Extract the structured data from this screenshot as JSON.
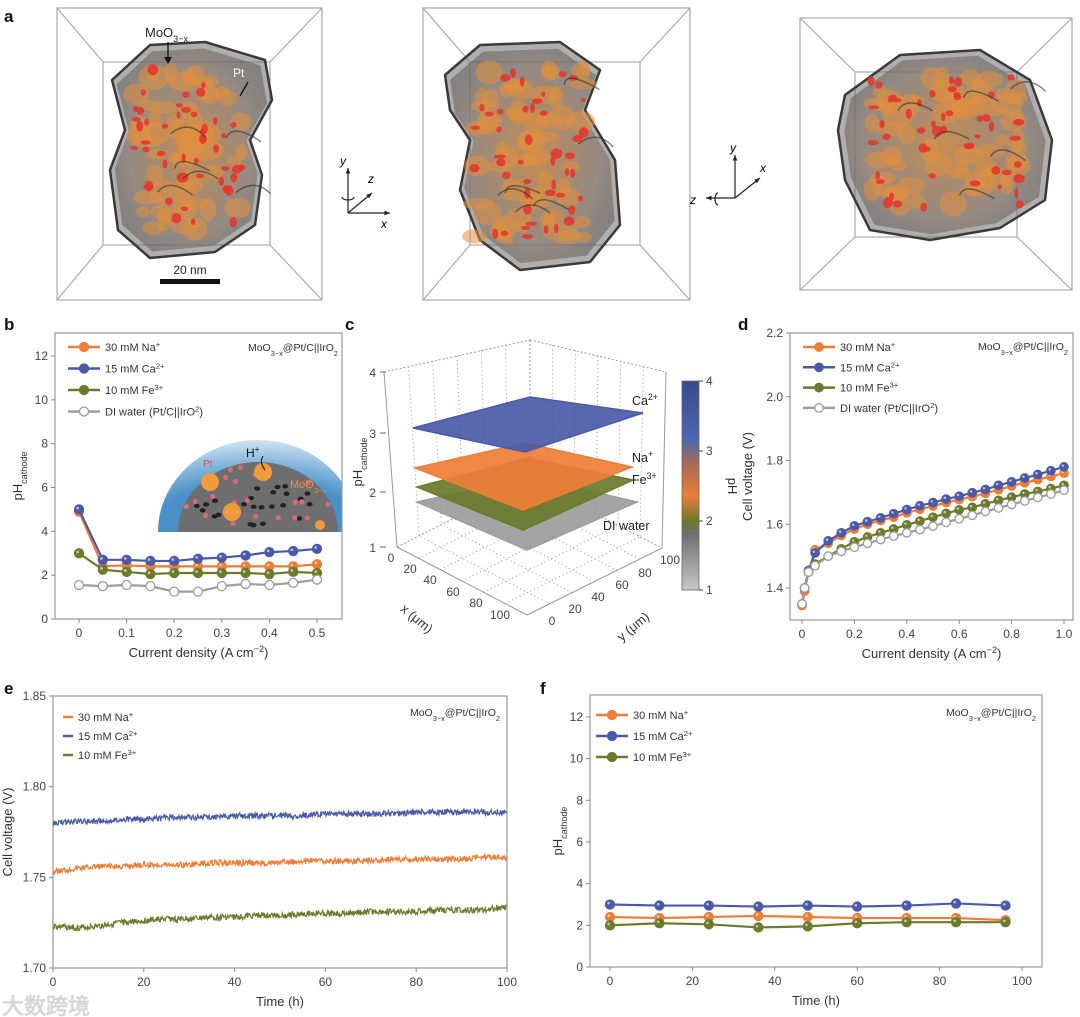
{
  "panel_labels": [
    "a",
    "b",
    "c",
    "d",
    "e",
    "f"
  ],
  "panel_a": {
    "label_moo3x": [
      "MoO",
      "3−x"
    ],
    "label_pt": "Pt",
    "scale_bar": "20 nm",
    "axes1": {
      "y": "y",
      "z": "z",
      "x": "x"
    },
    "axes2": {
      "y": "y",
      "x": "x",
      "z": "z"
    }
  },
  "colors": {
    "na": "#ee7d37",
    "ca": "#4b5aa8",
    "fe": "#6b7a2c",
    "di": "#9c9c9c"
  },
  "watermark": "大数跨境",
  "chart_data": [
    {
      "id": "b",
      "type": "line",
      "xlabel": [
        "Current density (A cm",
        "−2",
        ")"
      ],
      "ylabel": [
        "pH",
        "cathode"
      ],
      "xlim": [
        -0.04,
        0.54
      ],
      "ylim": [
        0,
        13
      ],
      "xticks": [
        "0",
        "0.1",
        "0.2",
        "0.3",
        "0.4",
        "0.5"
      ],
      "xtick_values": [
        0,
        0.1,
        0.2,
        0.3,
        0.4,
        0.5
      ],
      "yticks": [
        "0",
        "2",
        "4",
        "6",
        "8",
        "10",
        "12"
      ],
      "ytick_values": [
        0,
        2,
        4,
        6,
        8,
        10,
        12
      ],
      "annotation": [
        "MoO",
        "3−x",
        "@Pt/C||IrO",
        "2"
      ],
      "legend_position": "top-left",
      "inset": {
        "h_plus": [
          "H",
          "+"
        ],
        "pt": "Pt",
        "moo": [
          "MoO",
          "3−x"
        ]
      },
      "x": [
        0,
        0.05,
        0.1,
        0.15,
        0.2,
        0.25,
        0.3,
        0.35,
        0.4,
        0.45,
        0.5
      ],
      "series": [
        {
          "name": [
            "30 mM Na",
            "+"
          ],
          "color_key": "na",
          "marker": "filled",
          "values": [
            4.9,
            2.4,
            2.45,
            2.4,
            2.4,
            2.4,
            2.4,
            2.4,
            2.4,
            2.4,
            2.5
          ]
        },
        {
          "name": [
            "15 mM Ca",
            "2+"
          ],
          "color_key": "ca",
          "marker": "filled",
          "values": [
            5.0,
            2.7,
            2.7,
            2.65,
            2.65,
            2.75,
            2.8,
            2.9,
            3.05,
            3.1,
            3.2
          ]
        },
        {
          "name": [
            "10 mM Fe",
            "3+"
          ],
          "color_key": "fe",
          "marker": "filled",
          "values": [
            3.0,
            2.25,
            2.15,
            2.05,
            2.1,
            2.1,
            2.1,
            2.1,
            2.05,
            2.15,
            2.1
          ]
        },
        {
          "name": [
            "DI water (Pt/C||IrO",
            "2",
            ")"
          ],
          "color_key": "di",
          "marker": "open",
          "values": [
            1.55,
            1.5,
            1.55,
            1.5,
            1.25,
            1.25,
            1.5,
            1.6,
            1.55,
            1.65,
            1.8
          ]
        }
      ]
    },
    {
      "id": "c",
      "type": "surface3d",
      "zlabel": [
        "pH",
        "cathode"
      ],
      "xlabel": "x (μm)",
      "ylabel": "y (μm)",
      "zticks": [
        "1",
        "2",
        "3",
        "4"
      ],
      "xticks": [
        "0",
        "20",
        "40",
        "60",
        "80",
        "100"
      ],
      "yticks": [
        "0",
        "20",
        "40",
        "60",
        "80",
        "100"
      ],
      "colorbar": {
        "label": "pH",
        "ticks": [
          "1",
          "2",
          "3",
          "4"
        ],
        "range": [
          1,
          4
        ]
      },
      "surfaces": [
        {
          "name": [
            "Ca",
            "2+"
          ],
          "color_key": "ca",
          "mean_ph": 3.2
        },
        {
          "name": [
            "Na",
            "+"
          ],
          "color_key": "na",
          "mean_ph": 2.4
        },
        {
          "name": [
            "Fe",
            "3+"
          ],
          "color_key": "fe",
          "mean_ph": 2.1
        },
        {
          "name": [
            "DI water",
            ""
          ],
          "color_key": "di",
          "mean_ph": 1.8
        }
      ]
    },
    {
      "id": "d",
      "type": "line",
      "xlabel": [
        "Current density (A cm",
        "−2",
        ")"
      ],
      "ylabel": [
        "Cell voltage (V)"
      ],
      "xlim": [
        -0.05,
        1.04
      ],
      "ylim": [
        1.3,
        2.2
      ],
      "xticks": [
        "0",
        "0.2",
        "0.4",
        "0.6",
        "0.8",
        "1.0"
      ],
      "xtick_values": [
        0,
        0.2,
        0.4,
        0.6,
        0.8,
        1.0
      ],
      "yticks": [
        "1.4",
        "1.6",
        "1.8",
        "2.0",
        "2.2"
      ],
      "ytick_values": [
        1.4,
        1.6,
        1.8,
        2.0,
        2.2
      ],
      "annotation": [
        "MoO",
        "3−x",
        "@Pt/C||IrO",
        "2"
      ],
      "legend_position": "top-left",
      "x": [
        0,
        0.01,
        0.025,
        0.05,
        0.1,
        0.15,
        0.2,
        0.25,
        0.3,
        0.35,
        0.4,
        0.45,
        0.5,
        0.55,
        0.6,
        0.65,
        0.7,
        0.75,
        0.8,
        0.85,
        0.9,
        0.95,
        1.0
      ],
      "series": [
        {
          "name": [
            "30 mM Na",
            "+"
          ],
          "color_key": "na",
          "marker": "filled",
          "values": [
            1.345,
            1.39,
            1.45,
            1.52,
            1.54,
            1.565,
            1.585,
            1.6,
            1.612,
            1.622,
            1.636,
            1.647,
            1.657,
            1.668,
            1.677,
            1.687,
            1.697,
            1.708,
            1.72,
            1.73,
            1.74,
            1.75,
            1.76
          ]
        },
        {
          "name": [
            "15 mM Ca",
            "2+"
          ],
          "color_key": "ca",
          "marker": "filled",
          "values": [
            1.35,
            1.4,
            1.455,
            1.51,
            1.548,
            1.573,
            1.595,
            1.608,
            1.62,
            1.633,
            1.646,
            1.658,
            1.668,
            1.679,
            1.688,
            1.699,
            1.709,
            1.722,
            1.733,
            1.745,
            1.756,
            1.768,
            1.78
          ]
        },
        {
          "name": [
            "10 mM Fe",
            "3+"
          ],
          "color_key": "fe",
          "marker": "filled",
          "values": [
            1.35,
            1.4,
            1.45,
            1.475,
            1.5,
            1.523,
            1.545,
            1.56,
            1.573,
            1.585,
            1.598,
            1.61,
            1.622,
            1.634,
            1.645,
            1.653,
            1.664,
            1.675,
            1.685,
            1.695,
            1.703,
            1.712,
            1.722
          ]
        },
        {
          "name": [
            "DI water (Pt/C||IrO",
            "2",
            ")"
          ],
          "color_key": "di",
          "marker": "open",
          "values": [
            1.35,
            1.4,
            1.45,
            1.47,
            1.5,
            1.515,
            1.528,
            1.54,
            1.552,
            1.563,
            1.573,
            1.583,
            1.594,
            1.606,
            1.617,
            1.628,
            1.64,
            1.651,
            1.662,
            1.673,
            1.684,
            1.695,
            1.707
          ]
        }
      ]
    },
    {
      "id": "e",
      "type": "line",
      "xlabel": [
        "Time (h)"
      ],
      "ylabel": [
        "Cell voltage (V)"
      ],
      "xlim": [
        0,
        100
      ],
      "ylim": [
        1.7,
        1.85
      ],
      "xticks": [
        "0",
        "20",
        "40",
        "60",
        "80",
        "100"
      ],
      "xtick_values": [
        0,
        20,
        40,
        60,
        80,
        100
      ],
      "yticks": [
        "1.70",
        "1.75",
        "1.80",
        "1.85"
      ],
      "ytick_values": [
        1.7,
        1.75,
        1.8,
        1.85
      ],
      "annotation": [
        "MoO",
        "3−x",
        "@Pt/C||IrO",
        "2"
      ],
      "legend_position": "top-left",
      "x": [
        0,
        5,
        10,
        15,
        20,
        25,
        30,
        35,
        40,
        45,
        50,
        55,
        60,
        65,
        70,
        75,
        80,
        85,
        90,
        95,
        100
      ],
      "series": [
        {
          "name": [
            "30 mM Na",
            "+"
          ],
          "color_key": "na",
          "marker": "none",
          "values": [
            1.753,
            1.755,
            1.756,
            1.756,
            1.757,
            1.757,
            1.757,
            1.758,
            1.758,
            1.758,
            1.758,
            1.759,
            1.759,
            1.759,
            1.759,
            1.76,
            1.76,
            1.76,
            1.76,
            1.761,
            1.761
          ]
        },
        {
          "name": [
            "15 mM Ca",
            "2+"
          ],
          "color_key": "ca",
          "marker": "none",
          "values": [
            1.78,
            1.781,
            1.781,
            1.782,
            1.782,
            1.783,
            1.783,
            1.783,
            1.784,
            1.784,
            1.784,
            1.784,
            1.785,
            1.785,
            1.785,
            1.785,
            1.786,
            1.786,
            1.786,
            1.786,
            1.786
          ]
        },
        {
          "name": [
            "10 mM Fe",
            "3+"
          ],
          "color_key": "fe",
          "marker": "none",
          "values": [
            1.723,
            1.722,
            1.723,
            1.725,
            1.726,
            1.727,
            1.727,
            1.728,
            1.728,
            1.729,
            1.729,
            1.73,
            1.73,
            1.73,
            1.731,
            1.731,
            1.731,
            1.732,
            1.732,
            1.732,
            1.734
          ]
        }
      ]
    },
    {
      "id": "f",
      "type": "line",
      "xlabel": [
        "Time (h)"
      ],
      "ylabel": [
        "pH",
        "cathode"
      ],
      "xlim": [
        -5,
        105
      ],
      "ylim": [
        0,
        13
      ],
      "xticks": [
        "0",
        "20",
        "40",
        "60",
        "80",
        "100"
      ],
      "xtick_values": [
        0,
        20,
        40,
        60,
        80,
        100
      ],
      "yticks": [
        "0",
        "2",
        "4",
        "6",
        "8",
        "10",
        "12"
      ],
      "ytick_values": [
        0,
        2,
        4,
        6,
        8,
        10,
        12
      ],
      "annotation": [
        "MoO",
        "3−x",
        "@Pt/C||IrO",
        "2"
      ],
      "legend_position": "top-left",
      "x": [
        0,
        12,
        24,
        36,
        48,
        60,
        72,
        84,
        96
      ],
      "series": [
        {
          "name": [
            "30 mM Na",
            "+"
          ],
          "color_key": "na",
          "marker": "filled",
          "values": [
            2.4,
            2.35,
            2.4,
            2.45,
            2.4,
            2.35,
            2.35,
            2.35,
            2.25
          ]
        },
        {
          "name": [
            "15 mM Ca",
            "2+"
          ],
          "color_key": "ca",
          "marker": "filled",
          "values": [
            3.0,
            2.95,
            2.95,
            2.9,
            2.95,
            2.9,
            2.95,
            3.05,
            2.95
          ]
        },
        {
          "name": [
            "10 mM Fe",
            "3+"
          ],
          "color_key": "fe",
          "marker": "filled",
          "values": [
            2.0,
            2.1,
            2.05,
            1.9,
            1.95,
            2.1,
            2.15,
            2.15,
            2.15
          ]
        }
      ]
    }
  ]
}
